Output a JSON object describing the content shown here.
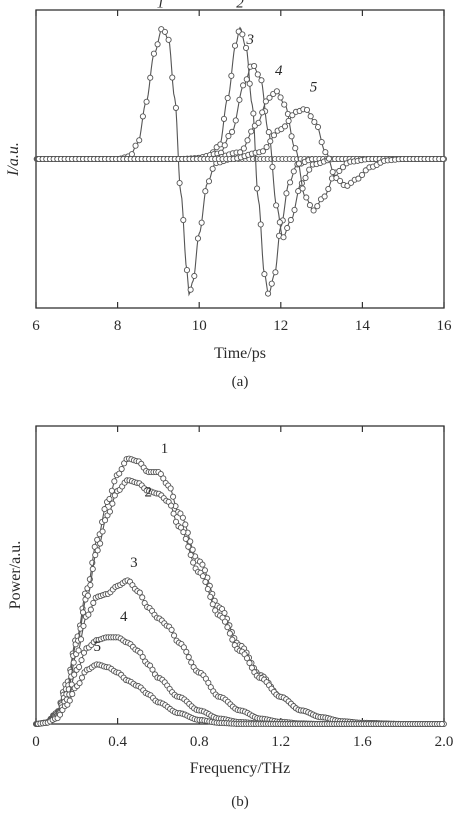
{
  "chart_data": [
    {
      "type": "line",
      "panel_label": "(a)",
      "xlabel": "Time/ps",
      "ylabel": "I/a.u.",
      "xlim": [
        6,
        16
      ],
      "ylim": [
        -1.1,
        1.1
      ],
      "x_ticks": [
        6,
        8,
        10,
        12,
        14,
        16
      ],
      "x_tick_labels": [
        "6",
        "8",
        "10",
        "12",
        "14",
        "16"
      ],
      "y_ticks_labeled": false,
      "grid": false,
      "marker": "open-circle",
      "series": [
        {
          "name": "1",
          "points": [
            [
              7.0,
              0.0
            ],
            [
              7.5,
              0.0
            ],
            [
              8.0,
              0.0
            ],
            [
              8.3,
              0.02
            ],
            [
              8.5,
              0.12
            ],
            [
              8.7,
              0.42
            ],
            [
              8.9,
              0.78
            ],
            [
              9.1,
              0.97
            ],
            [
              9.25,
              0.88
            ],
            [
              9.4,
              0.45
            ],
            [
              9.55,
              -0.25
            ],
            [
              9.7,
              -0.82
            ],
            [
              9.75,
              -1.0
            ],
            [
              9.85,
              -0.9
            ],
            [
              10.0,
              -0.55
            ],
            [
              10.2,
              -0.18
            ],
            [
              10.4,
              -0.03
            ],
            [
              10.8,
              0.0
            ],
            [
              12.0,
              0.0
            ],
            [
              14.0,
              0.0
            ],
            [
              16.0,
              0.0
            ]
          ]
        },
        {
          "name": "2",
          "points": [
            [
              6.0,
              0.0
            ],
            [
              9.5,
              0.0
            ],
            [
              10.2,
              0.01
            ],
            [
              10.5,
              0.1
            ],
            [
              10.7,
              0.45
            ],
            [
              10.9,
              0.85
            ],
            [
              11.0,
              0.97
            ],
            [
              11.15,
              0.82
            ],
            [
              11.3,
              0.4
            ],
            [
              11.45,
              -0.3
            ],
            [
              11.6,
              -0.85
            ],
            [
              11.7,
              -1.0
            ],
            [
              11.85,
              -0.85
            ],
            [
              12.0,
              -0.5
            ],
            [
              12.2,
              -0.18
            ],
            [
              12.4,
              -0.04
            ],
            [
              12.8,
              0.0
            ],
            [
              16.0,
              0.0
            ]
          ]
        },
        {
          "name": "3",
          "points": [
            [
              6.0,
              0.0
            ],
            [
              9.8,
              0.0
            ],
            [
              10.5,
              0.04
            ],
            [
              10.8,
              0.2
            ],
            [
              11.1,
              0.55
            ],
            [
              11.3,
              0.7
            ],
            [
              11.5,
              0.6
            ],
            [
              11.7,
              0.2
            ],
            [
              11.9,
              -0.35
            ],
            [
              12.05,
              -0.58
            ],
            [
              12.25,
              -0.45
            ],
            [
              12.5,
              -0.18
            ],
            [
              12.8,
              -0.04
            ],
            [
              13.3,
              0.0
            ],
            [
              16.0,
              0.0
            ]
          ]
        },
        {
          "name": "4",
          "points": [
            [
              6.0,
              0.0
            ],
            [
              10.3,
              0.0
            ],
            [
              11.0,
              0.05
            ],
            [
              11.4,
              0.25
            ],
            [
              11.7,
              0.45
            ],
            [
              11.9,
              0.5
            ],
            [
              12.1,
              0.4
            ],
            [
              12.35,
              0.08
            ],
            [
              12.6,
              -0.28
            ],
            [
              12.8,
              -0.38
            ],
            [
              13.05,
              -0.28
            ],
            [
              13.35,
              -0.1
            ],
            [
              13.7,
              -0.02
            ],
            [
              14.2,
              0.0
            ],
            [
              16.0,
              0.0
            ]
          ]
        },
        {
          "name": "5",
          "points": [
            [
              6.0,
              0.0
            ],
            [
              10.8,
              0.0
            ],
            [
              11.5,
              0.05
            ],
            [
              12.0,
              0.22
            ],
            [
              12.4,
              0.35
            ],
            [
              12.6,
              0.37
            ],
            [
              12.85,
              0.27
            ],
            [
              13.1,
              0.05
            ],
            [
              13.35,
              -0.14
            ],
            [
              13.6,
              -0.2
            ],
            [
              13.85,
              -0.15
            ],
            [
              14.2,
              -0.06
            ],
            [
              14.6,
              -0.01
            ],
            [
              15.0,
              0.0
            ],
            [
              16.0,
              0.0
            ]
          ]
        }
      ]
    },
    {
      "type": "line",
      "panel_label": "(b)",
      "xlabel": "Frequency/THz",
      "ylabel": "Power/a.u.",
      "xlim": [
        0,
        2.0
      ],
      "ylim": [
        0,
        1.1
      ],
      "x_ticks": [
        0,
        0.4,
        0.8,
        1.2,
        1.6,
        2.0
      ],
      "x_tick_labels": [
        "0",
        "0.4",
        "0.8",
        "1.2",
        "1.6",
        "2.0"
      ],
      "y_ticks_labeled": false,
      "grid": false,
      "marker": "open-circle",
      "series": [
        {
          "name": "1",
          "points": [
            [
              0.0,
              0.0
            ],
            [
              0.05,
              0.005
            ],
            [
              0.1,
              0.04
            ],
            [
              0.15,
              0.15
            ],
            [
              0.2,
              0.32
            ],
            [
              0.25,
              0.5
            ],
            [
              0.3,
              0.68
            ],
            [
              0.35,
              0.82
            ],
            [
              0.4,
              0.92
            ],
            [
              0.45,
              0.98
            ],
            [
              0.5,
              0.97
            ],
            [
              0.55,
              0.93
            ],
            [
              0.6,
              0.93
            ],
            [
              0.65,
              0.88
            ],
            [
              0.7,
              0.78
            ],
            [
              0.8,
              0.6
            ],
            [
              0.9,
              0.43
            ],
            [
              1.0,
              0.29
            ],
            [
              1.1,
              0.18
            ],
            [
              1.2,
              0.1
            ],
            [
              1.3,
              0.05
            ],
            [
              1.4,
              0.025
            ],
            [
              1.5,
              0.01
            ],
            [
              1.6,
              0.004
            ],
            [
              1.8,
              0.0
            ],
            [
              2.0,
              0.0
            ]
          ]
        },
        {
          "name": "2",
          "points": [
            [
              0.0,
              0.0
            ],
            [
              0.05,
              0.005
            ],
            [
              0.1,
              0.035
            ],
            [
              0.15,
              0.13
            ],
            [
              0.2,
              0.3
            ],
            [
              0.25,
              0.47
            ],
            [
              0.3,
              0.64
            ],
            [
              0.35,
              0.77
            ],
            [
              0.4,
              0.86
            ],
            [
              0.45,
              0.9
            ],
            [
              0.5,
              0.89
            ],
            [
              0.55,
              0.86
            ],
            [
              0.6,
              0.85
            ],
            [
              0.65,
              0.82
            ],
            [
              0.7,
              0.73
            ],
            [
              0.8,
              0.56
            ],
            [
              0.9,
              0.4
            ],
            [
              1.0,
              0.27
            ],
            [
              1.1,
              0.17
            ],
            [
              1.2,
              0.1
            ],
            [
              1.3,
              0.05
            ],
            [
              1.4,
              0.025
            ],
            [
              1.5,
              0.01
            ],
            [
              1.6,
              0.004
            ],
            [
              1.8,
              0.0
            ],
            [
              2.0,
              0.0
            ]
          ]
        },
        {
          "name": "3",
          "points": [
            [
              0.0,
              0.0
            ],
            [
              0.05,
              0.005
            ],
            [
              0.1,
              0.03
            ],
            [
              0.15,
              0.11
            ],
            [
              0.2,
              0.26
            ],
            [
              0.25,
              0.4
            ],
            [
              0.3,
              0.47
            ],
            [
              0.35,
              0.48
            ],
            [
              0.4,
              0.51
            ],
            [
              0.45,
              0.53
            ],
            [
              0.5,
              0.49
            ],
            [
              0.55,
              0.43
            ],
            [
              0.6,
              0.39
            ],
            [
              0.65,
              0.36
            ],
            [
              0.7,
              0.3
            ],
            [
              0.8,
              0.19
            ],
            [
              0.9,
              0.1
            ],
            [
              1.0,
              0.05
            ],
            [
              1.1,
              0.02
            ],
            [
              1.2,
              0.008
            ],
            [
              1.3,
              0.002
            ],
            [
              1.4,
              0.0
            ],
            [
              2.0,
              0.0
            ]
          ]
        },
        {
          "name": "4",
          "points": [
            [
              0.0,
              0.0
            ],
            [
              0.05,
              0.004
            ],
            [
              0.1,
              0.025
            ],
            [
              0.15,
              0.09
            ],
            [
              0.2,
              0.2
            ],
            [
              0.25,
              0.28
            ],
            [
              0.3,
              0.31
            ],
            [
              0.35,
              0.32
            ],
            [
              0.4,
              0.32
            ],
            [
              0.45,
              0.3
            ],
            [
              0.5,
              0.27
            ],
            [
              0.55,
              0.22
            ],
            [
              0.6,
              0.17
            ],
            [
              0.7,
              0.1
            ],
            [
              0.8,
              0.05
            ],
            [
              0.9,
              0.02
            ],
            [
              1.0,
              0.007
            ],
            [
              1.1,
              0.002
            ],
            [
              1.2,
              0.0
            ],
            [
              2.0,
              0.0
            ]
          ]
        },
        {
          "name": "5",
          "points": [
            [
              0.0,
              0.0
            ],
            [
              0.05,
              0.004
            ],
            [
              0.1,
              0.02
            ],
            [
              0.15,
              0.07
            ],
            [
              0.2,
              0.14
            ],
            [
              0.25,
              0.2
            ],
            [
              0.3,
              0.22
            ],
            [
              0.35,
              0.21
            ],
            [
              0.4,
              0.19
            ],
            [
              0.45,
              0.16
            ],
            [
              0.5,
              0.14
            ],
            [
              0.55,
              0.11
            ],
            [
              0.6,
              0.08
            ],
            [
              0.7,
              0.04
            ],
            [
              0.8,
              0.015
            ],
            [
              0.9,
              0.004
            ],
            [
              1.0,
              0.0
            ],
            [
              2.0,
              0.0
            ]
          ]
        }
      ]
    }
  ]
}
